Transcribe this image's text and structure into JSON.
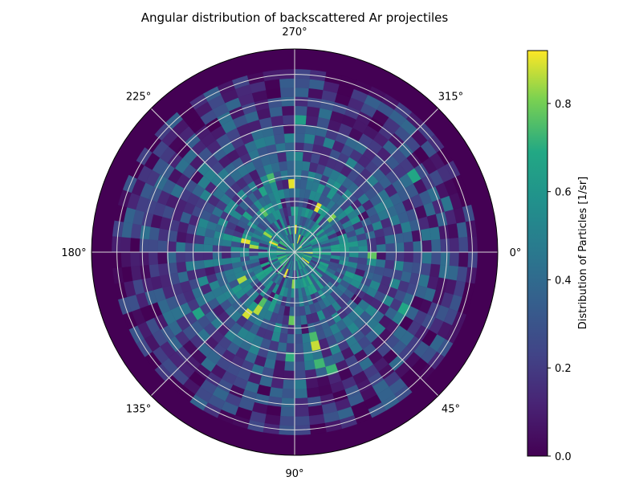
{
  "chart_data": {
    "type": "heatmap",
    "projection": "polar",
    "title": "Angular distribution of backscattered Ar projectiles",
    "theta_tick_labels": [
      "0°",
      "45°",
      "90°",
      "135°",
      "180°",
      "225°",
      "270°",
      "315°"
    ],
    "theta_ticks_deg": [
      0,
      45,
      90,
      135,
      180,
      225,
      270,
      315
    ],
    "theta_direction": "clockwise",
    "theta_zero_location": "right",
    "radial_gridlines": 7,
    "radial_tick_labels_shown": false,
    "grid": true,
    "colormap": "viridis",
    "colorbar": {
      "label": "Distribution of Particles [1/sr]",
      "ticks": [
        0.0,
        0.2,
        0.4,
        0.6,
        0.8
      ],
      "tick_labels": [
        "0.0",
        "0.2",
        "0.4",
        "0.6",
        "0.8"
      ],
      "range": [
        0.0,
        0.92
      ],
      "placement": "right"
    },
    "binning": {
      "theta_bins": 72,
      "radial_bins": 20
    },
    "value_trend": "values highest near center (up to ~0.9), falling to ~0.1 toward the outer ring; outermost band is 0.0"
  }
}
